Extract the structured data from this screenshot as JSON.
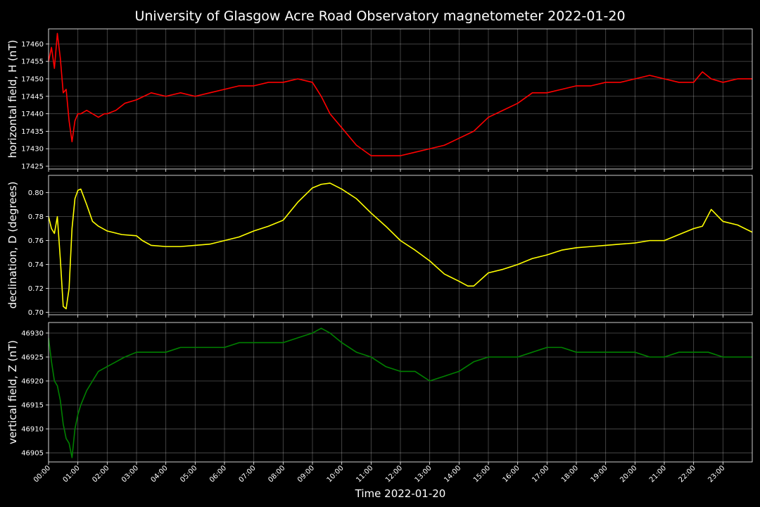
{
  "chart_data": {
    "type": "line",
    "title": "University of Glasgow Acre Road Observatory magnetometer 2022-01-20",
    "xlabel": "Time 2022-01-20",
    "x_unit": "hours",
    "xlim": [
      0,
      24
    ],
    "x_ticks": [
      "00:00",
      "01:00",
      "02:00",
      "03:00",
      "04:00",
      "05:00",
      "06:00",
      "07:00",
      "08:00",
      "09:00",
      "10:00",
      "11:00",
      "12:00",
      "13:00",
      "14:00",
      "15:00",
      "16:00",
      "17:00",
      "18:00",
      "19:00",
      "20:00",
      "21:00",
      "22:00",
      "23:00"
    ],
    "grid": true,
    "panels": [
      {
        "name": "horizontal",
        "ylabel": "horizontal field, H (nT)",
        "color": "#ff0000",
        "ylim": [
          17424.2,
          17464.3
        ],
        "yticks": [
          17425,
          17430,
          17435,
          17440,
          17445,
          17450,
          17455,
          17460
        ],
        "ytick_labels": [
          "17425",
          "17430",
          "17435",
          "17440",
          "17445",
          "17450",
          "17455",
          "17460"
        ],
        "x": [
          0,
          0.1,
          0.2,
          0.3,
          0.4,
          0.5,
          0.6,
          0.7,
          0.8,
          0.9,
          1.0,
          1.1,
          1.3,
          1.5,
          1.7,
          1.9,
          2.0,
          2.3,
          2.6,
          3.0,
          3.5,
          4.0,
          4.5,
          5.0,
          5.5,
          6.0,
          6.5,
          7.0,
          7.5,
          8.0,
          8.5,
          9.0,
          9.3,
          9.6,
          10.0,
          10.5,
          11.0,
          11.5,
          12.0,
          12.5,
          13.0,
          13.5,
          14.0,
          14.5,
          15.0,
          15.5,
          16.0,
          16.5,
          17.0,
          17.5,
          18.0,
          18.5,
          19.0,
          19.5,
          20.0,
          20.5,
          21.0,
          21.5,
          22.0,
          22.3,
          22.6,
          23.0,
          23.5,
          24.0
        ],
        "values": [
          17455,
          17459,
          17453,
          17463,
          17456,
          17446,
          17447,
          17438,
          17432,
          17438,
          17440,
          17440,
          17441,
          17440,
          17439,
          17440,
          17440,
          17441,
          17443,
          17444,
          17446,
          17445,
          17446,
          17445,
          17446,
          17447,
          17448,
          17448,
          17449,
          17449,
          17450,
          17449,
          17445,
          17440,
          17436,
          17431,
          17428,
          17428,
          17428,
          17429,
          17430,
          17431,
          17433,
          17435,
          17439,
          17441,
          17443,
          17446,
          17446,
          17447,
          17448,
          17448,
          17449,
          17449,
          17450,
          17451,
          17450,
          17449,
          17449,
          17452,
          17450,
          17449,
          17450,
          17450
        ]
      },
      {
        "name": "declination",
        "ylabel": "declination, D (degrees)",
        "color": "#ffff00",
        "ylim": [
          0.698,
          0.8145
        ],
        "yticks": [
          0.7,
          0.72,
          0.74,
          0.76,
          0.78,
          0.8
        ],
        "ytick_labels": [
          "0.70",
          "0.72",
          "0.74",
          "0.76",
          "0.78",
          "0.80"
        ],
        "x": [
          0,
          0.1,
          0.2,
          0.3,
          0.4,
          0.5,
          0.6,
          0.7,
          0.8,
          0.9,
          1.0,
          1.1,
          1.3,
          1.5,
          1.7,
          2.0,
          2.5,
          3.0,
          3.2,
          3.5,
          4.0,
          4.5,
          5.0,
          5.5,
          6.0,
          6.5,
          7.0,
          7.5,
          8.0,
          8.5,
          9.0,
          9.3,
          9.6,
          10.0,
          10.5,
          11.0,
          11.5,
          12.0,
          12.5,
          13.0,
          13.5,
          14.0,
          14.3,
          14.5,
          15.0,
          15.5,
          16.0,
          16.5,
          17.0,
          17.5,
          18.0,
          18.5,
          19.0,
          19.5,
          20.0,
          20.5,
          21.0,
          21.5,
          22.0,
          22.3,
          22.6,
          23.0,
          23.5,
          24.0
        ],
        "values": [
          0.78,
          0.77,
          0.766,
          0.78,
          0.745,
          0.705,
          0.703,
          0.72,
          0.77,
          0.795,
          0.802,
          0.803,
          0.79,
          0.776,
          0.772,
          0.768,
          0.765,
          0.764,
          0.76,
          0.756,
          0.755,
          0.755,
          0.756,
          0.757,
          0.76,
          0.763,
          0.768,
          0.772,
          0.777,
          0.792,
          0.804,
          0.807,
          0.808,
          0.803,
          0.795,
          0.783,
          0.772,
          0.76,
          0.752,
          0.743,
          0.732,
          0.726,
          0.722,
          0.722,
          0.733,
          0.736,
          0.74,
          0.745,
          0.748,
          0.752,
          0.754,
          0.755,
          0.756,
          0.757,
          0.758,
          0.76,
          0.76,
          0.765,
          0.77,
          0.772,
          0.786,
          0.776,
          0.773,
          0.767
        ]
      },
      {
        "name": "vertical",
        "ylabel": "vertical field, Z (nT)",
        "color": "#008000",
        "ylim": [
          46903.1,
          46932.2
        ],
        "yticks": [
          46905,
          46910,
          46915,
          46920,
          46925,
          46930
        ],
        "ytick_labels": [
          "46905",
          "46910",
          "46915",
          "46920",
          "46925",
          "46930"
        ],
        "x": [
          0,
          0.1,
          0.2,
          0.3,
          0.4,
          0.5,
          0.6,
          0.7,
          0.8,
          0.9,
          1.0,
          1.1,
          1.3,
          1.5,
          1.7,
          2.0,
          2.3,
          2.6,
          3.0,
          3.5,
          4.0,
          4.5,
          5.0,
          5.5,
          6.0,
          6.5,
          7.0,
          7.5,
          8.0,
          8.5,
          9.0,
          9.3,
          9.6,
          10.0,
          10.5,
          11.0,
          11.5,
          12.0,
          12.5,
          13.0,
          13.5,
          14.0,
          14.5,
          15.0,
          15.5,
          16.0,
          16.5,
          17.0,
          17.5,
          18.0,
          18.5,
          19.0,
          19.5,
          20.0,
          20.5,
          21.0,
          21.5,
          22.0,
          22.5,
          23.0,
          23.5,
          24.0
        ],
        "values": [
          46929,
          46924,
          46920,
          46919,
          46916,
          46911,
          46908,
          46907,
          46904,
          46910,
          46913,
          46915,
          46918,
          46920,
          46922,
          46923,
          46924,
          46925,
          46926,
          46926,
          46926,
          46927,
          46927,
          46927,
          46927,
          46928,
          46928,
          46928,
          46928,
          46929,
          46930,
          46931,
          46930,
          46928,
          46926,
          46925,
          46923,
          46922,
          46922,
          46920,
          46921,
          46922,
          46924,
          46925,
          46925,
          46925,
          46926,
          46927,
          46927,
          46926,
          46926,
          46926,
          46926,
          46926,
          46925,
          46925,
          46926,
          46926,
          46926,
          46925,
          46925,
          46925
        ]
      }
    ]
  }
}
